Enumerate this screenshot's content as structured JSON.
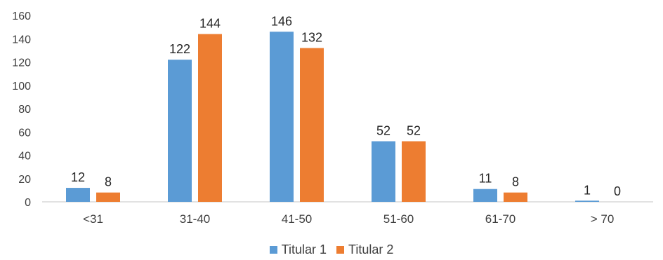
{
  "chart_data": {
    "type": "bar",
    "categories": [
      "<31",
      "31-40",
      "41-50",
      "51-60",
      "61-70",
      "> 70"
    ],
    "series": [
      {
        "name": "Titular 1",
        "values": [
          12,
          122,
          146,
          52,
          11,
          1
        ],
        "color": "#5b9bd5"
      },
      {
        "name": "Titular 2",
        "values": [
          8,
          144,
          132,
          52,
          8,
          0
        ],
        "color": "#ed7d31"
      }
    ],
    "ylim": [
      0,
      160
    ],
    "yticks": [
      0,
      20,
      40,
      60,
      80,
      100,
      120,
      140,
      160
    ],
    "grid": false,
    "legend": "bottom-center"
  }
}
